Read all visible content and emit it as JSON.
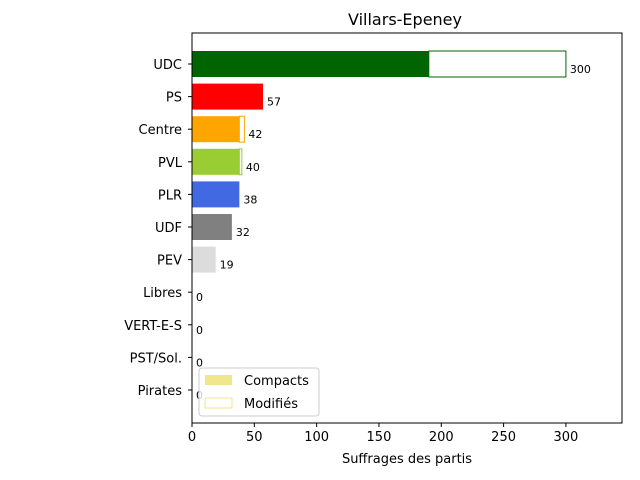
{
  "chart_data": {
    "type": "bar",
    "orientation": "horizontal",
    "title": "Villars-Epeney",
    "xlabel": "Suffrages des partis",
    "ylabel": "",
    "xlim": [
      0,
      345
    ],
    "xticks": [
      0,
      50,
      100,
      150,
      200,
      250,
      300
    ],
    "grid": false,
    "legend_position": "lower-left",
    "categories": [
      "UDC",
      "PS",
      "Centre",
      "PVL",
      "PLR",
      "UDF",
      "PEV",
      "Libres",
      "VERT-E-S",
      "PST/Sol.",
      "Pirates"
    ],
    "colors": [
      "#006400",
      "#ff0000",
      "#ffa500",
      "#9acd32",
      "#4169e1",
      "#808080",
      "#dcdcdc",
      "#228b22",
      "#008000",
      "#b22222",
      "#800080"
    ],
    "series": [
      {
        "name": "Compacts",
        "values": [
          190,
          57,
          38,
          38,
          38,
          32,
          19,
          0,
          0,
          0,
          0
        ]
      },
      {
        "name": "Modifiés",
        "values": [
          110,
          0,
          4,
          2,
          0,
          0,
          0,
          0,
          0,
          0,
          0
        ]
      }
    ],
    "totals": [
      "300",
      "57",
      "42",
      "40",
      "38",
      "32",
      "19",
      "0",
      "0",
      "0",
      "0"
    ],
    "legend": {
      "compact_color": "#f0e68c",
      "modified_edge": "#f0e68c"
    }
  }
}
